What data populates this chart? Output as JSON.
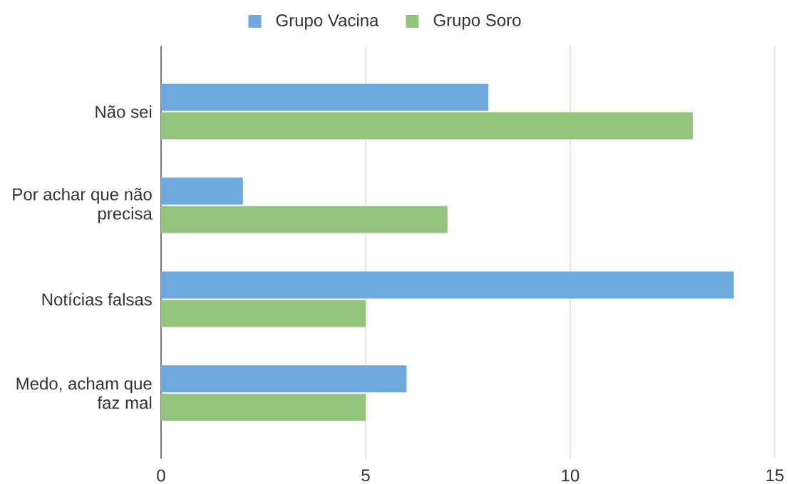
{
  "chart_data": {
    "type": "bar",
    "orientation": "horizontal",
    "categories": [
      "Não sei",
      "Por achar que não precisa",
      "Notícias falsas",
      "Medo, acham que faz mal"
    ],
    "series": [
      {
        "name": "Grupo Vacina",
        "color": "#6fa8dc",
        "values": [
          8,
          2,
          14,
          6
        ]
      },
      {
        "name": "Grupo Soro",
        "color": "#93c47d",
        "values": [
          13,
          7,
          5,
          5
        ]
      }
    ],
    "xlim": [
      0,
      15
    ],
    "xticks": [
      0,
      5,
      10,
      15
    ],
    "grid": "x",
    "legend": "top"
  }
}
